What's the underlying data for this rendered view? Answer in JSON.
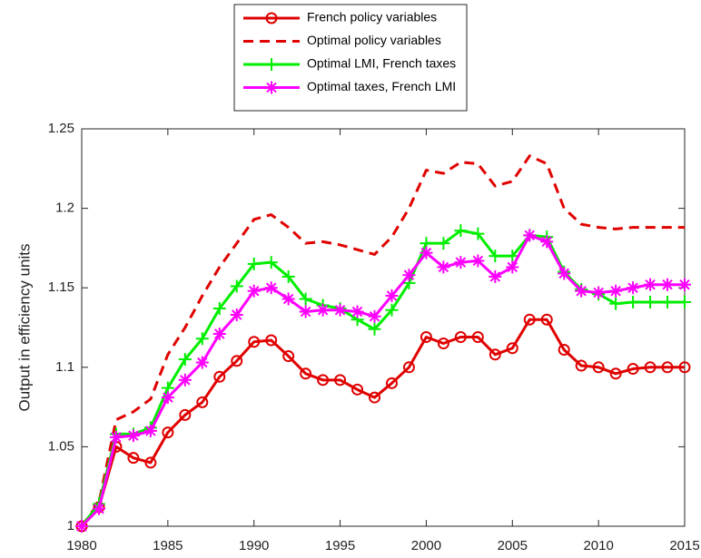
{
  "chart_data": {
    "type": "line",
    "y_label": "Output in efficiency units",
    "legend_position": "top",
    "x": [
      1980,
      1981,
      1982,
      1983,
      1984,
      1985,
      1986,
      1987,
      1988,
      1989,
      1990,
      1991,
      1992,
      1993,
      1994,
      1995,
      1996,
      1997,
      1998,
      1999,
      2000,
      2001,
      2002,
      2003,
      2004,
      2005,
      2006,
      2007,
      2008,
      2009,
      2010,
      2011,
      2012,
      2013,
      2014,
      2015
    ],
    "xlim": [
      1980,
      2015
    ],
    "xticks": [
      1980,
      1985,
      1990,
      1995,
      2000,
      2005,
      2010,
      2015
    ],
    "ylim": [
      1,
      1.25
    ],
    "yticks": [
      1,
      1.05,
      1.1,
      1.15,
      1.2,
      1.25
    ],
    "series": [
      {
        "name": "French policy variables",
        "color": "#e00000",
        "marker": "circle",
        "linestyle": "solid",
        "values": [
          1.0,
          1.012,
          1.05,
          1.043,
          1.04,
          1.059,
          1.07,
          1.078,
          1.094,
          1.104,
          1.116,
          1.117,
          1.107,
          1.096,
          1.092,
          1.092,
          1.086,
          1.081,
          1.09,
          1.1,
          1.119,
          1.115,
          1.119,
          1.119,
          1.108,
          1.112,
          1.13,
          1.13,
          1.111,
          1.101,
          1.1,
          1.096,
          1.099,
          1.1,
          1.1,
          1.1
        ]
      },
      {
        "name": "Optimal policy variables",
        "color": "#e00000",
        "marker": "none",
        "linestyle": "dashed",
        "values": [
          1.0,
          1.015,
          1.067,
          1.072,
          1.08,
          1.108,
          1.125,
          1.145,
          1.163,
          1.178,
          1.193,
          1.196,
          1.188,
          1.178,
          1.179,
          1.177,
          1.174,
          1.171,
          1.182,
          1.2,
          1.224,
          1.222,
          1.229,
          1.228,
          1.214,
          1.217,
          1.233,
          1.228,
          1.2,
          1.19,
          1.188,
          1.187,
          1.188,
          1.188,
          1.188,
          1.188
        ]
      },
      {
        "name": "Optimal LMI, French taxes",
        "color": "#00ee00",
        "marker": "plus",
        "linestyle": "solid",
        "values": [
          1.0,
          1.014,
          1.058,
          1.058,
          1.062,
          1.087,
          1.105,
          1.118,
          1.137,
          1.151,
          1.165,
          1.166,
          1.157,
          1.143,
          1.139,
          1.137,
          1.13,
          1.124,
          1.136,
          1.153,
          1.178,
          1.178,
          1.186,
          1.184,
          1.17,
          1.17,
          1.183,
          1.182,
          1.16,
          1.149,
          1.146,
          1.14,
          1.141,
          1.141,
          1.141,
          1.141
        ]
      },
      {
        "name": "Optimal taxes, French LMI",
        "color": "#ff00ff",
        "marker": "asterisk",
        "linestyle": "solid",
        "values": [
          1.0,
          1.011,
          1.056,
          1.057,
          1.06,
          1.081,
          1.092,
          1.103,
          1.121,
          1.133,
          1.148,
          1.15,
          1.143,
          1.135,
          1.136,
          1.136,
          1.135,
          1.132,
          1.145,
          1.158,
          1.172,
          1.163,
          1.166,
          1.167,
          1.157,
          1.163,
          1.183,
          1.179,
          1.159,
          1.148,
          1.147,
          1.148,
          1.15,
          1.152,
          1.152,
          1.152
        ]
      }
    ]
  }
}
